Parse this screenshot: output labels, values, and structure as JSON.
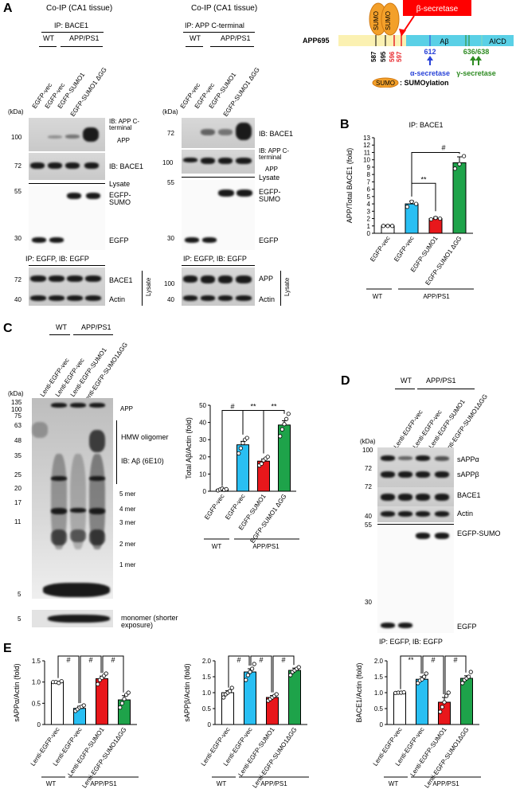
{
  "panels": {
    "A": "A",
    "B": "B",
    "C": "C",
    "D": "D",
    "E": "E"
  },
  "panelA": {
    "left": {
      "title": "Co-IP (CA1 tissue)",
      "ip": "IP: BACE1",
      "wt": "WT",
      "app": "APP/PS1",
      "lanes": [
        "EGFP-vec",
        "EGFP-vec",
        "EGFP-SUMO1",
        "EGFP-SUMO1 ΔGG"
      ],
      "kda": "(kDa)",
      "mw1": [
        "100"
      ],
      "mw2": [
        "72"
      ],
      "mw3": [
        "55",
        "30"
      ],
      "mw4": [
        "72",
        "40"
      ],
      "ib1": "IB: APP C-terminal",
      "ib1b": "APP",
      "ib2": "IB: BACE1",
      "lysate": "Lysate",
      "egfp_sumo": "EGFP- SUMO",
      "egfp": "EGFP",
      "ip_egfp": "IP: EGFP, IB: EGFP",
      "bace1": "BACE1",
      "actin": "Actin",
      "lysate_vert": "Lysate"
    },
    "right": {
      "title": "Co-IP (CA1 tissue)",
      "ip": "IP: APP C-terminal",
      "wt": "WT",
      "app": "APP/PS1",
      "lanes": [
        "EGFP-vec",
        "EGFP-vec",
        "EGFP-SUMO1",
        "EGFP-SUMO1 ΔGG"
      ],
      "kda": "(kDa)",
      "mw1": [
        "72"
      ],
      "mw2": [
        "100"
      ],
      "mw3": [
        "55",
        "30"
      ],
      "mw4": [
        "100",
        "40"
      ],
      "ib1": "IB: BACE1",
      "ib2": "IB: APP C-terminal",
      "ib2b": "APP",
      "lysate": "Lysate",
      "egfp_sumo": "EGFP- SUMO",
      "egfp": "EGFP",
      "ip_egfp": "IP: EGFP, IB: EGFP",
      "app_b": "APP",
      "actin": "Actin",
      "lysate_vert": "Lysate"
    },
    "schematic": {
      "protein": "APP695",
      "sumo": "SUMO",
      "beta": "β-secretase",
      "abeta": "Aβ",
      "aicd": "AICD",
      "sites": [
        "587",
        "595",
        "596",
        "597"
      ],
      "alpha_site": "612",
      "alpha": "α-secretase",
      "gamma_site": "636/638",
      "gamma": "γ-secretase",
      "legend": ": SUMOylation",
      "color_beta": "#e8252a",
      "color_alpha": "#2a43d8",
      "color_gamma": "#2e8b22",
      "color_sumo": "#f3a02a"
    }
  },
  "panelB": {
    "title": "IP: BACE1",
    "ylabel": "APP/Total BACE1 (fold)",
    "sig1": "**",
    "sig2": "#",
    "wt": "WT",
    "app": "APP/PS1"
  },
  "panelC": {
    "wt": "WT",
    "app": "APP/PS1",
    "lanes": [
      "Lenti-EGFP-vec",
      "Lenti-EGFP-vec",
      "Lenti-EGFP-SUMO1",
      "Lenti-EGFP-SUMO1ΔGG"
    ],
    "kda": "(kDa)",
    "mw": [
      "135",
      "100",
      "75",
      "63",
      "48",
      "35",
      "25",
      "20",
      "17",
      "11",
      "5"
    ],
    "mw_mono": "5",
    "labels": [
      "APP",
      "HMW oligomer",
      "IB: Aβ (6E10)",
      "5 mer",
      "4 mer",
      "3 mer",
      "2 mer",
      "1 mer"
    ],
    "monomer": "monomer (shorter exposure)",
    "chart_ylabel": "Total Aβ/Actin (fold)",
    "sig": [
      "#",
      "**",
      "**"
    ],
    "wt_b": "WT",
    "app_b": "APP/PS1"
  },
  "panelD": {
    "wt": "WT",
    "app": "APP/PS1",
    "lanes": [
      "Lenti-EGFP-vec",
      "Lenti-EGFP-vec",
      "Lenti-EGFP-SUMO1",
      "Lenti-EGFP-SUMO1ΔGG"
    ],
    "kda": "(kDa)",
    "mw": [
      "100",
      "72",
      "72",
      "40",
      "55",
      "30"
    ],
    "labels": [
      "sAPPα",
      "sAPPβ",
      "BACE1",
      "Actin",
      "EGFP-SUMO",
      "EGFP"
    ],
    "ip": "IP: EGFP, IB: EGFP"
  },
  "panelE": {
    "wt": "WT",
    "app": "APP/PS1"
  },
  "chart_data": [
    {
      "type": "bar",
      "id": "B",
      "title": "IP: BACE1",
      "ylabel": "APP/Total BACE1 (fold)",
      "categories": [
        "EGFP-vec",
        "EGFP-vec",
        "EGFP-SUMO1",
        "EGFP-SUMO1 ΔGG"
      ],
      "values": [
        1.0,
        4.0,
        2.0,
        9.6
      ],
      "errors": [
        0.1,
        0.4,
        0.2,
        0.8
      ],
      "points": [
        [
          1.0,
          1.0,
          1.0
        ],
        [
          3.6,
          4.3,
          4.0
        ],
        [
          1.9,
          2.1,
          2.0
        ],
        [
          8.8,
          9.4,
          10.5
        ]
      ],
      "colors": [
        "#ffffff",
        "#29bff3",
        "#e8171b",
        "#1ea34a"
      ],
      "ylim": [
        0,
        13
      ],
      "yticks": [
        0,
        1,
        2,
        3,
        4,
        5,
        6,
        7,
        8,
        9,
        10,
        11,
        12,
        13
      ]
    },
    {
      "type": "bar",
      "id": "C",
      "ylabel": "Total Aβ/Actin (fold)",
      "categories": [
        "EGFP-vec",
        "EGFP-vec",
        "EGFP-SUMO1",
        "EGFP-SUMO1 ΔGG"
      ],
      "values": [
        1.0,
        27.0,
        17.5,
        38.5
      ],
      "errors": [
        0.3,
        2.0,
        1.2,
        2.5
      ],
      "points": [
        [
          0.5,
          1.0,
          1.5,
          0.8,
          1.2
        ],
        [
          22,
          25,
          28,
          30,
          31
        ],
        [
          15,
          16,
          18,
          19,
          20
        ],
        [
          32,
          36,
          39,
          42,
          45
        ]
      ],
      "colors": [
        "#ffffff",
        "#29bff3",
        "#e8171b",
        "#1ea34a"
      ],
      "ylim": [
        0,
        50
      ],
      "yticks": [
        0,
        10,
        20,
        30,
        40,
        50
      ]
    },
    {
      "type": "bar",
      "id": "E1",
      "ylabel": "sAPPα/Actin (fold)",
      "categories": [
        "Lenti-EGFP-vec",
        "Lenti-EGFP-vec",
        "Lenti-EGFP-SUMO1",
        "Lenti-EGFP-SUMO1ΔGG"
      ],
      "values": [
        1.0,
        0.38,
        1.08,
        0.58
      ],
      "errors": [
        0.02,
        0.05,
        0.06,
        0.1
      ],
      "points": [
        [
          1.0,
          1.0,
          0.98,
          1.02
        ],
        [
          0.32,
          0.36,
          0.4,
          0.42,
          0.45
        ],
        [
          0.95,
          1.05,
          1.1,
          1.15,
          1.2
        ],
        [
          0.4,
          0.5,
          0.6,
          0.7,
          0.75
        ]
      ],
      "colors": [
        "#ffffff",
        "#29bff3",
        "#e8171b",
        "#1ea34a"
      ],
      "ylim": [
        0,
        1.5
      ],
      "yticks": [
        0,
        0.5,
        1.0,
        1.5
      ],
      "sig": [
        "#",
        "#",
        "#"
      ]
    },
    {
      "type": "bar",
      "id": "E2",
      "ylabel": "sAPPβ/Actin (fold)",
      "categories": [
        "Lenti-EGFP-vec",
        "Lenti-EGFP-vec",
        "Lenti-EGFP-SUMO1",
        "Lenti-EGFP-SUMO1ΔGG"
      ],
      "values": [
        1.0,
        1.65,
        0.85,
        1.7
      ],
      "errors": [
        0.06,
        0.1,
        0.06,
        0.07
      ],
      "points": [
        [
          0.85,
          0.95,
          1.0,
          1.05,
          1.15
        ],
        [
          1.4,
          1.55,
          1.65,
          1.75,
          1.9
        ],
        [
          0.75,
          0.8,
          0.85,
          0.9,
          0.95
        ],
        [
          1.55,
          1.65,
          1.7,
          1.75,
          1.8
        ]
      ],
      "colors": [
        "#ffffff",
        "#29bff3",
        "#e8171b",
        "#1ea34a"
      ],
      "ylim": [
        0,
        2.0
      ],
      "yticks": [
        0,
        0.5,
        1.0,
        1.5,
        2.0
      ],
      "sig": [
        "#",
        "#",
        "#"
      ]
    },
    {
      "type": "bar",
      "id": "E3",
      "ylabel": "BACE1/Actin (fold)",
      "categories": [
        "Lenti-EGFP-vec",
        "Lenti-EGFP-vec",
        "Lenti-EGFP-SUMO1",
        "Lenti-EGFP-SUMO1ΔGG"
      ],
      "values": [
        1.0,
        1.42,
        0.7,
        1.45
      ],
      "errors": [
        0.01,
        0.08,
        0.15,
        0.08
      ],
      "points": [
        [
          0.99,
          1.0,
          1.0,
          1.01
        ],
        [
          1.3,
          1.38,
          1.42,
          1.5,
          1.6
        ],
        [
          0.4,
          0.55,
          0.7,
          0.9,
          1.0
        ],
        [
          1.3,
          1.4,
          1.45,
          1.5,
          1.65
        ]
      ],
      "colors": [
        "#ffffff",
        "#29bff3",
        "#e8171b",
        "#1ea34a"
      ],
      "ylim": [
        0,
        2.0
      ],
      "yticks": [
        0,
        0.5,
        1.0,
        1.5,
        2.0
      ],
      "sig": [
        "**",
        "#",
        "#"
      ]
    }
  ]
}
